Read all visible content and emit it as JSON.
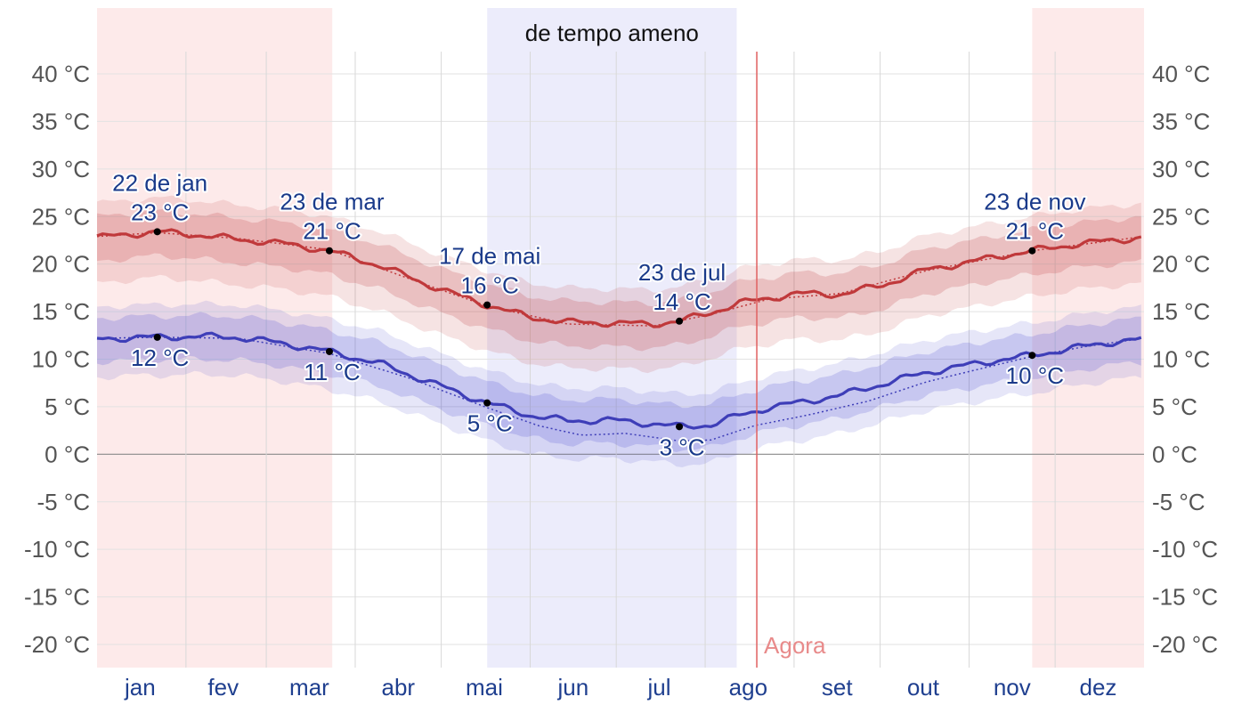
{
  "chart_data": {
    "type": "line",
    "x_units": "day_of_year",
    "y_units": "°C",
    "ylim": [
      -20,
      40
    ],
    "yticks": [
      {
        "value": 40,
        "label": "40 °C"
      },
      {
        "value": 35,
        "label": "35 °C"
      },
      {
        "value": 30,
        "label": "30 °C"
      },
      {
        "value": 25,
        "label": "25 °C"
      },
      {
        "value": 20,
        "label": "20 °C"
      },
      {
        "value": 15,
        "label": "15 °C"
      },
      {
        "value": 10,
        "label": "10 °C"
      },
      {
        "value": 5,
        "label": "5 °C"
      },
      {
        "value": 0,
        "label": "0 °C"
      },
      {
        "value": -5,
        "label": "-5 °C"
      },
      {
        "value": -10,
        "label": "-10 °C"
      },
      {
        "value": -15,
        "label": "-15 °C"
      },
      {
        "value": -20,
        "label": "-20 °C"
      }
    ],
    "month_labels": [
      {
        "label": "jan",
        "day": 16
      },
      {
        "label": "fev",
        "day": 45
      },
      {
        "label": "mar",
        "day": 75
      },
      {
        "label": "abr",
        "day": 106
      },
      {
        "label": "mai",
        "day": 136
      },
      {
        "label": "jun",
        "day": 167
      },
      {
        "label": "jul",
        "day": 197
      },
      {
        "label": "ago",
        "day": 228
      },
      {
        "label": "set",
        "day": 259
      },
      {
        "label": "out",
        "day": 289
      },
      {
        "label": "nov",
        "day": 320
      },
      {
        "label": "dez",
        "day": 350
      }
    ],
    "month_boundaries": [
      32,
      60,
      91,
      121,
      152,
      182,
      213,
      244,
      274,
      305,
      335
    ],
    "season_bands": [
      {
        "kind": "warm",
        "start": 1,
        "end": 83,
        "color": "#fdeaea"
      },
      {
        "kind": "cool",
        "start": 137,
        "end": 224,
        "color": "#ececfb",
        "label": "de tempo ameno"
      },
      {
        "kind": "warm",
        "start": 327,
        "end": 366,
        "color": "#fdeaea"
      }
    ],
    "now": {
      "day": 231,
      "label": "Agora",
      "color": "#e06060"
    },
    "series": [
      {
        "role": "high",
        "color": "#c0393b",
        "points": [
          [
            1,
            22.8
          ],
          [
            15,
            23.2
          ],
          [
            22,
            23.4
          ],
          [
            35,
            23.1
          ],
          [
            50,
            22.6
          ],
          [
            65,
            22.2
          ],
          [
            82,
            21.4
          ],
          [
            100,
            19.8
          ],
          [
            115,
            18.0
          ],
          [
            126,
            16.8
          ],
          [
            137,
            15.7
          ],
          [
            152,
            14.4
          ],
          [
            165,
            13.9
          ],
          [
            180,
            13.8
          ],
          [
            195,
            13.7
          ],
          [
            204,
            14.0
          ],
          [
            215,
            14.9
          ],
          [
            225,
            15.9
          ],
          [
            235,
            16.4
          ],
          [
            245,
            16.9
          ],
          [
            260,
            16.8
          ],
          [
            275,
            17.8
          ],
          [
            290,
            19.4
          ],
          [
            305,
            20.2
          ],
          [
            315,
            20.8
          ],
          [
            327,
            21.4
          ],
          [
            340,
            22.0
          ],
          [
            355,
            22.5
          ],
          [
            366,
            22.8
          ]
        ],
        "band_inner": [
          2.2,
          2.5
        ],
        "band_outer": [
          3.6,
          4.8
        ],
        "band_color": "#c0393b"
      },
      {
        "role": "low",
        "color": "#3e3eb8",
        "points": [
          [
            1,
            12.1
          ],
          [
            15,
            12.3
          ],
          [
            22,
            12.3
          ],
          [
            35,
            12.4
          ],
          [
            50,
            12.3
          ],
          [
            65,
            11.7
          ],
          [
            82,
            10.8
          ],
          [
            100,
            9.5
          ],
          [
            115,
            7.8
          ],
          [
            126,
            6.6
          ],
          [
            137,
            5.4
          ],
          [
            152,
            4.1
          ],
          [
            165,
            3.5
          ],
          [
            180,
            3.6
          ],
          [
            195,
            3.2
          ],
          [
            204,
            2.9
          ],
          [
            215,
            3.1
          ],
          [
            225,
            4.1
          ],
          [
            235,
            4.9
          ],
          [
            245,
            5.4
          ],
          [
            260,
            6.2
          ],
          [
            275,
            7.4
          ],
          [
            290,
            8.6
          ],
          [
            305,
            9.4
          ],
          [
            315,
            9.9
          ],
          [
            327,
            10.4
          ],
          [
            340,
            11.1
          ],
          [
            355,
            11.8
          ],
          [
            366,
            12.1
          ]
        ],
        "band_inner": [
          2.2,
          2.4
        ],
        "band_outer": [
          3.4,
          4.0
        ],
        "band_color": "#4b4bd0"
      },
      {
        "role": "high_dotted",
        "color": "#c0393b",
        "points": [
          [
            1,
            22.9
          ],
          [
            22,
            23.3
          ],
          [
            50,
            22.7
          ],
          [
            82,
            21.5
          ],
          [
            115,
            17.9
          ],
          [
            137,
            15.6
          ],
          [
            165,
            13.7
          ],
          [
            195,
            13.5
          ],
          [
            215,
            14.7
          ],
          [
            235,
            16.3
          ],
          [
            260,
            16.9
          ],
          [
            290,
            19.3
          ],
          [
            327,
            21.4
          ],
          [
            366,
            22.9
          ]
        ]
      },
      {
        "role": "low_dotted",
        "color": "#3e3eb8",
        "points": [
          [
            1,
            12.2
          ],
          [
            22,
            12.3
          ],
          [
            50,
            12.2
          ],
          [
            82,
            10.6
          ],
          [
            110,
            8.0
          ],
          [
            137,
            4.9
          ],
          [
            155,
            3.0
          ],
          [
            170,
            2.0
          ],
          [
            185,
            2.2
          ],
          [
            204,
            1.4
          ],
          [
            215,
            1.5
          ],
          [
            230,
            3.0
          ],
          [
            250,
            4.2
          ],
          [
            270,
            5.6
          ],
          [
            290,
            7.6
          ],
          [
            305,
            8.7
          ],
          [
            327,
            10.3
          ],
          [
            345,
            11.3
          ],
          [
            366,
            12.2
          ]
        ]
      }
    ],
    "annotations": [
      {
        "day": 22,
        "value": 23.4,
        "lines": [
          "22 de jan",
          "23 °C"
        ],
        "position": "above"
      },
      {
        "day": 82,
        "value": 21.4,
        "lines": [
          "23 de mar",
          "21 °C"
        ],
        "position": "above"
      },
      {
        "day": 137,
        "value": 15.7,
        "lines": [
          "17 de mai",
          "16 °C"
        ],
        "position": "above"
      },
      {
        "day": 204,
        "value": 14.0,
        "lines": [
          "23 de jul",
          "14 °C"
        ],
        "position": "above"
      },
      {
        "day": 327,
        "value": 21.4,
        "lines": [
          "23 de nov",
          "21 °C"
        ],
        "position": "above"
      },
      {
        "day": 22,
        "value": 12.3,
        "lines": [
          "12 °C"
        ],
        "position": "below"
      },
      {
        "day": 82,
        "value": 10.8,
        "lines": [
          "11 °C"
        ],
        "position": "below"
      },
      {
        "day": 137,
        "value": 5.4,
        "lines": [
          "5 °C"
        ],
        "position": "below"
      },
      {
        "day": 204,
        "value": 2.9,
        "lines": [
          "3 °C"
        ],
        "position": "below"
      },
      {
        "day": 327,
        "value": 10.4,
        "lines": [
          "10 °C"
        ],
        "position": "below"
      }
    ]
  }
}
